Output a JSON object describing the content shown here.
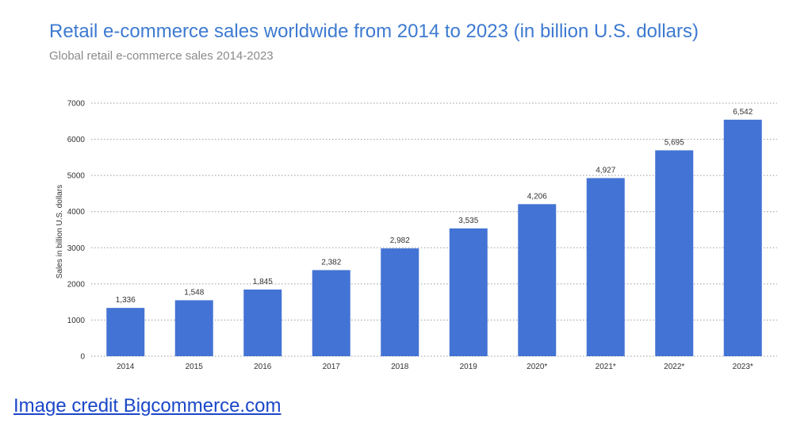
{
  "chart_data": {
    "type": "bar",
    "title": "Retail e-commerce sales worldwide from 2014 to 2023 (in billion U.S. dollars)",
    "subtitle": "Global retail e-commerce sales 2014-2023",
    "xlabel": "",
    "ylabel": "Sales in billion U.S. dollars",
    "categories": [
      "2014",
      "2015",
      "2016",
      "2017",
      "2018",
      "2019",
      "2020*",
      "2021*",
      "2022*",
      "2023*"
    ],
    "values": [
      1336,
      1548,
      1845,
      2382,
      2982,
      3535,
      4206,
      4927,
      5695,
      6542
    ],
    "value_labels": [
      "1,336",
      "1,548",
      "1,845",
      "2,382",
      "2,982",
      "3,535",
      "4,206",
      "4,927",
      "5,695",
      "6,542"
    ],
    "yticks": [
      0,
      1000,
      2000,
      3000,
      4000,
      5000,
      6000,
      7000
    ],
    "ylim": [
      0,
      7000
    ],
    "grid": "horizontal dotted",
    "bar_color": "#4373d4"
  },
  "credit": {
    "text": "Image credit Bigcommerce.com"
  }
}
